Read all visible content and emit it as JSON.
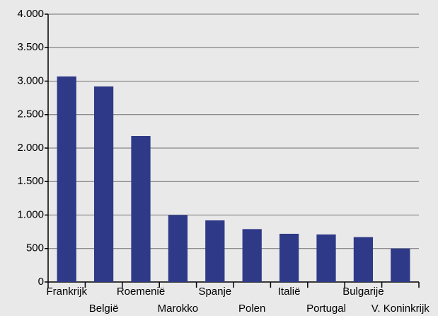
{
  "chart_data": {
    "type": "bar",
    "categories": [
      "Frankrijk",
      "België",
      "Roemenië",
      "Marokko",
      "Spanje",
      "Polen",
      "Italië",
      "Portugal",
      "Bulgarije",
      "V. Koninkrijk"
    ],
    "values": [
      3070,
      2920,
      2180,
      1000,
      920,
      790,
      720,
      710,
      670,
      500
    ],
    "color": "#2e3a87",
    "ylim": [
      0,
      4000
    ],
    "yticks": [
      0,
      500,
      {
        "value": 1000,
        "label": "1.000"
      },
      {
        "value": 1500,
        "label": "1.500"
      },
      {
        "value": 2000,
        "label": "2.000"
      },
      {
        "value": 2500,
        "label": "2.500"
      },
      {
        "value": 3000,
        "label": "3.000"
      },
      {
        "value": 3500,
        "label": "3.500"
      },
      {
        "value": 4000,
        "label": "4.000"
      }
    ],
    "grid": true
  }
}
